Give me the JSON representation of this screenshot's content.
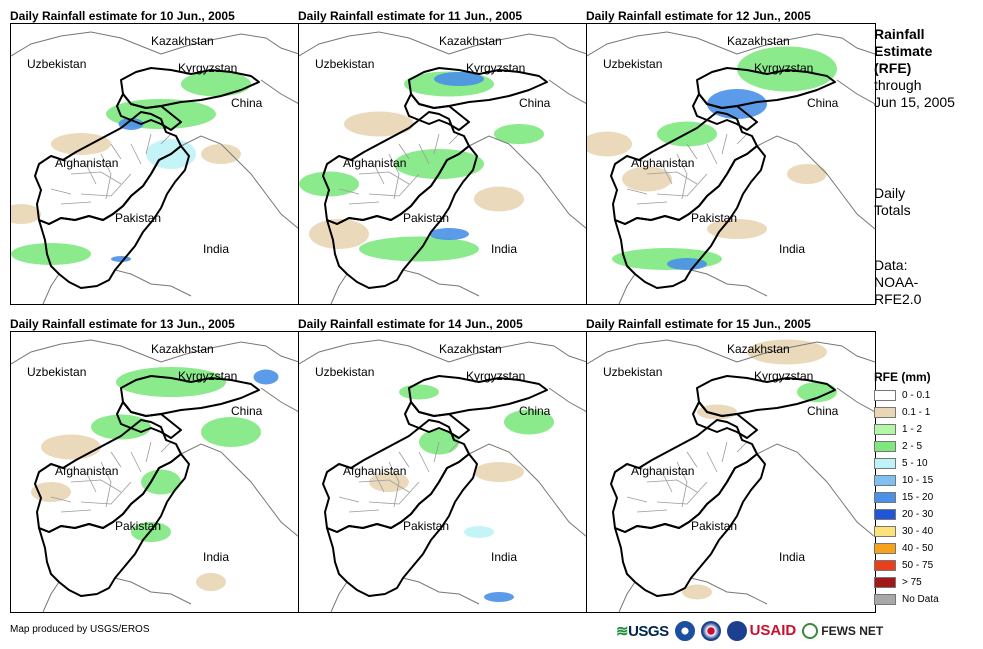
{
  "panels": [
    {
      "title": "Daily Rainfall estimate for 10 Jun., 2005",
      "rain": [
        [
          150,
          90,
          110,
          30,
          "#7ee87e"
        ],
        [
          70,
          120,
          60,
          22,
          "#e8d6b4"
        ],
        [
          160,
          130,
          50,
          30,
          "#bff3f7"
        ],
        [
          120,
          100,
          25,
          12,
          "#4a90e8"
        ],
        [
          40,
          230,
          80,
          22,
          "#7ee87e"
        ],
        [
          205,
          60,
          70,
          25,
          "#7ee87e"
        ],
        [
          210,
          130,
          40,
          20,
          "#e8d6b4"
        ],
        [
          110,
          235,
          20,
          6,
          "#4a90e8"
        ],
        [
          10,
          190,
          40,
          20,
          "#e8d6b4"
        ]
      ]
    },
    {
      "title": "Daily Rainfall estimate for 11 Jun., 2005",
      "rain": [
        [
          150,
          60,
          90,
          25,
          "#7ee87e"
        ],
        [
          160,
          55,
          50,
          14,
          "#4a90e8"
        ],
        [
          140,
          140,
          90,
          30,
          "#7ee87e"
        ],
        [
          80,
          100,
          70,
          25,
          "#e8d6b4"
        ],
        [
          30,
          160,
          60,
          25,
          "#7ee87e"
        ],
        [
          120,
          225,
          120,
          25,
          "#7ee87e"
        ],
        [
          150,
          210,
          40,
          12,
          "#4a90e8"
        ],
        [
          40,
          210,
          60,
          30,
          "#e8d6b4"
        ],
        [
          220,
          110,
          50,
          20,
          "#7ee87e"
        ],
        [
          200,
          175,
          50,
          25,
          "#e8d6b4"
        ]
      ]
    },
    {
      "title": "Daily Rainfall estimate for 12 Jun., 2005",
      "rain": [
        [
          200,
          45,
          100,
          45,
          "#7ee87e"
        ],
        [
          150,
          80,
          60,
          30,
          "#4a90e8"
        ],
        [
          100,
          110,
          60,
          25,
          "#7ee87e"
        ],
        [
          60,
          155,
          50,
          25,
          "#e8d6b4"
        ],
        [
          80,
          235,
          110,
          22,
          "#7ee87e"
        ],
        [
          100,
          240,
          40,
          12,
          "#4a90e8"
        ],
        [
          20,
          120,
          50,
          25,
          "#e8d6b4"
        ],
        [
          150,
          205,
          60,
          20,
          "#e8d6b4"
        ],
        [
          220,
          150,
          40,
          20,
          "#e8d6b4"
        ]
      ]
    },
    {
      "title": "Daily Rainfall estimate for 13 Jun., 2005",
      "rain": [
        [
          160,
          50,
          110,
          30,
          "#7ee87e"
        ],
        [
          110,
          95,
          60,
          25,
          "#7ee87e"
        ],
        [
          60,
          115,
          60,
          25,
          "#e8d6b4"
        ],
        [
          220,
          100,
          60,
          30,
          "#7ee87e"
        ],
        [
          150,
          150,
          40,
          25,
          "#7ee87e"
        ],
        [
          140,
          200,
          40,
          20,
          "#7ee87e"
        ],
        [
          40,
          160,
          40,
          20,
          "#e8d6b4"
        ],
        [
          200,
          250,
          30,
          18,
          "#e8d6b4"
        ],
        [
          255,
          45,
          25,
          15,
          "#4a90e8"
        ]
      ]
    },
    {
      "title": "Daily Rainfall estimate for 14 Jun., 2005",
      "rain": [
        [
          140,
          110,
          40,
          25,
          "#7ee87e"
        ],
        [
          230,
          90,
          50,
          25,
          "#7ee87e"
        ],
        [
          200,
          140,
          50,
          20,
          "#e8d6b4"
        ],
        [
          120,
          60,
          40,
          15,
          "#7ee87e"
        ],
        [
          180,
          200,
          30,
          12,
          "#bff3f7"
        ],
        [
          200,
          265,
          30,
          10,
          "#4a90e8"
        ],
        [
          90,
          150,
          40,
          20,
          "#e8d6b4"
        ]
      ]
    },
    {
      "title": "Daily Rainfall estimate for 15 Jun., 2005",
      "rain": [
        [
          200,
          20,
          80,
          25,
          "#e8d6b4"
        ],
        [
          230,
          60,
          40,
          20,
          "#7ee87e"
        ],
        [
          130,
          80,
          40,
          15,
          "#e8d6b4"
        ],
        [
          110,
          260,
          30,
          15,
          "#e8d6b4"
        ]
      ]
    }
  ],
  "map_labels": {
    "kazakhstan": "Kazakhstan",
    "uzbekistan": "Uzbekistan",
    "kyrgyzstan": "Kyrgyzstan",
    "china": "China",
    "afghanistan": "Afghanistan",
    "pakistan": "Pakistan",
    "india": "India"
  },
  "side": {
    "line1": "Rainfall",
    "line2": "Estimate",
    "line3": "(RFE)",
    "line4": "through",
    "line5": "Jun 15, 2005",
    "daily1": "Daily",
    "daily2": "Totals",
    "data1": "Data:",
    "data2": "NOAA-",
    "data3": "RFE2.0"
  },
  "legend": {
    "title": "RFE (mm)",
    "items": [
      {
        "label": "0 - 0.1",
        "color": "#ffffff"
      },
      {
        "label": "0.1 - 1",
        "color": "#e8d6b4"
      },
      {
        "label": "1 - 2",
        "color": "#b4f5a8"
      },
      {
        "label": "2 - 5",
        "color": "#7ee87e"
      },
      {
        "label": "5 - 10",
        "color": "#bff3f7"
      },
      {
        "label": "10 - 15",
        "color": "#7fbff2"
      },
      {
        "label": "15 - 20",
        "color": "#4a90e8"
      },
      {
        "label": "20 - 30",
        "color": "#1f55d6"
      },
      {
        "label": "30 - 40",
        "color": "#fbe27a"
      },
      {
        "label": "40 - 50",
        "color": "#f7a21b"
      },
      {
        "label": "50 - 75",
        "color": "#e8401c"
      },
      {
        "label": "> 75",
        "color": "#a01818"
      },
      {
        "label": "No Data",
        "color": "#a8a8a8"
      }
    ]
  },
  "footer": {
    "credit": "Map produced by USGS/EROS",
    "usgs": "USGS",
    "usaid": "USAID",
    "fews": "FEWS NET"
  }
}
